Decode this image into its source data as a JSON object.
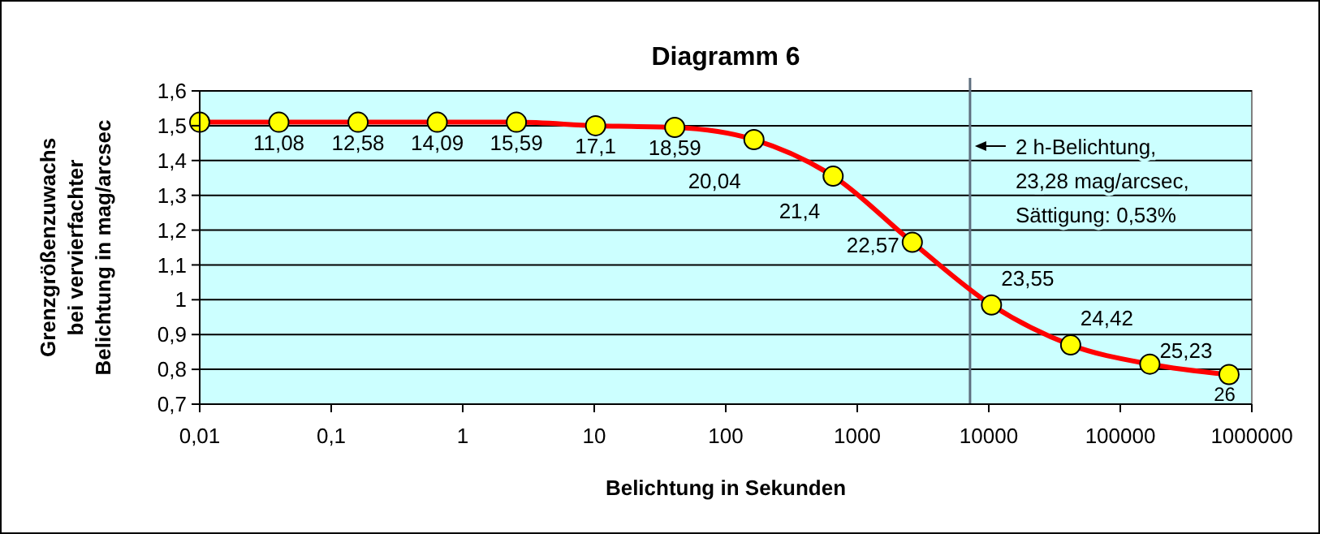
{
  "chart_data": {
    "type": "line",
    "title": "Diagramm 6",
    "xlabel": "Belichtung in Sekunden",
    "ylabel": "Grenzgrößenzuwachs\nbei vervierfachter\nBelichtung in mag/arcsec",
    "log": "x",
    "x": [
      0.01,
      0.04,
      0.16,
      0.64,
      2.56,
      10.24,
      40.96,
      163.84,
      655.36,
      2621.44,
      10485.76,
      41943.04,
      167772.16,
      671088.64
    ],
    "series": [
      {
        "color": "#ff0000",
        "values": [
          1.51,
          1.51,
          1.51,
          1.51,
          1.51,
          1.5,
          1.495,
          1.46,
          1.355,
          1.165,
          0.985,
          0.87,
          0.815,
          0.785
        ]
      }
    ],
    "xlim": [
      0.01,
      1000000
    ],
    "xticks": [
      {
        "value": 0.01,
        "label": "0,01"
      },
      {
        "value": 0.1,
        "label": "0,1"
      },
      1,
      10,
      100,
      1000,
      10000,
      100000,
      1000000
    ],
    "ylim": [
      0.7,
      1.6
    ],
    "yticks": [
      {
        "value": 0.7,
        "label": "0,7"
      },
      {
        "value": 0.8,
        "label": "0,8"
      },
      {
        "value": 0.9,
        "label": "0,9"
      },
      1,
      {
        "value": 1.1,
        "label": "1,1"
      },
      {
        "value": 1.2,
        "label": "1,2"
      },
      {
        "value": 1.3,
        "label": "1,3"
      },
      {
        "value": 1.4,
        "label": "1,4"
      },
      {
        "value": 1.5,
        "label": "1,5"
      },
      {
        "value": 1.6,
        "label": "1,6"
      }
    ],
    "grid": "y",
    "marker": "circle",
    "line_style": "solid",
    "ref_lines": [
      {
        "axis": "x",
        "value": 7200,
        "color": "#5f6f7f"
      }
    ],
    "annotations": [
      "2 h-Belichtung,\n23,28 mag/arcsec,\nSättigung: 0,53%",
      {
        "text": "11,08",
        "x": 0.04,
        "y": 1.51
      },
      {
        "text": "12,58",
        "x": 0.16,
        "y": 1.51
      },
      {
        "text": "14,09",
        "x": 0.64,
        "y": 1.51
      },
      {
        "text": "15,59",
        "x": 2.56,
        "y": 1.51
      },
      {
        "text": "17,1",
        "x": 10.24,
        "y": 1.5
      },
      {
        "text": "18,59",
        "x": 40.96,
        "y": 1.495
      },
      {
        "text": "20,04",
        "x": 163.84,
        "y": 1.46
      },
      {
        "text": "21,4",
        "x": 655.36,
        "y": 1.355
      },
      {
        "text": "22,57",
        "x": 2621.44,
        "y": 1.165
      },
      {
        "text": "23,55",
        "x": 10485.76,
        "y": 0.985
      },
      {
        "text": "24,42",
        "x": 41943.04,
        "y": 0.87
      },
      {
        "text": "25,23",
        "x": 167772.16,
        "y": 0.815
      },
      {
        "text": "26",
        "x": 671088.64,
        "y": 0.785
      }
    ]
  }
}
